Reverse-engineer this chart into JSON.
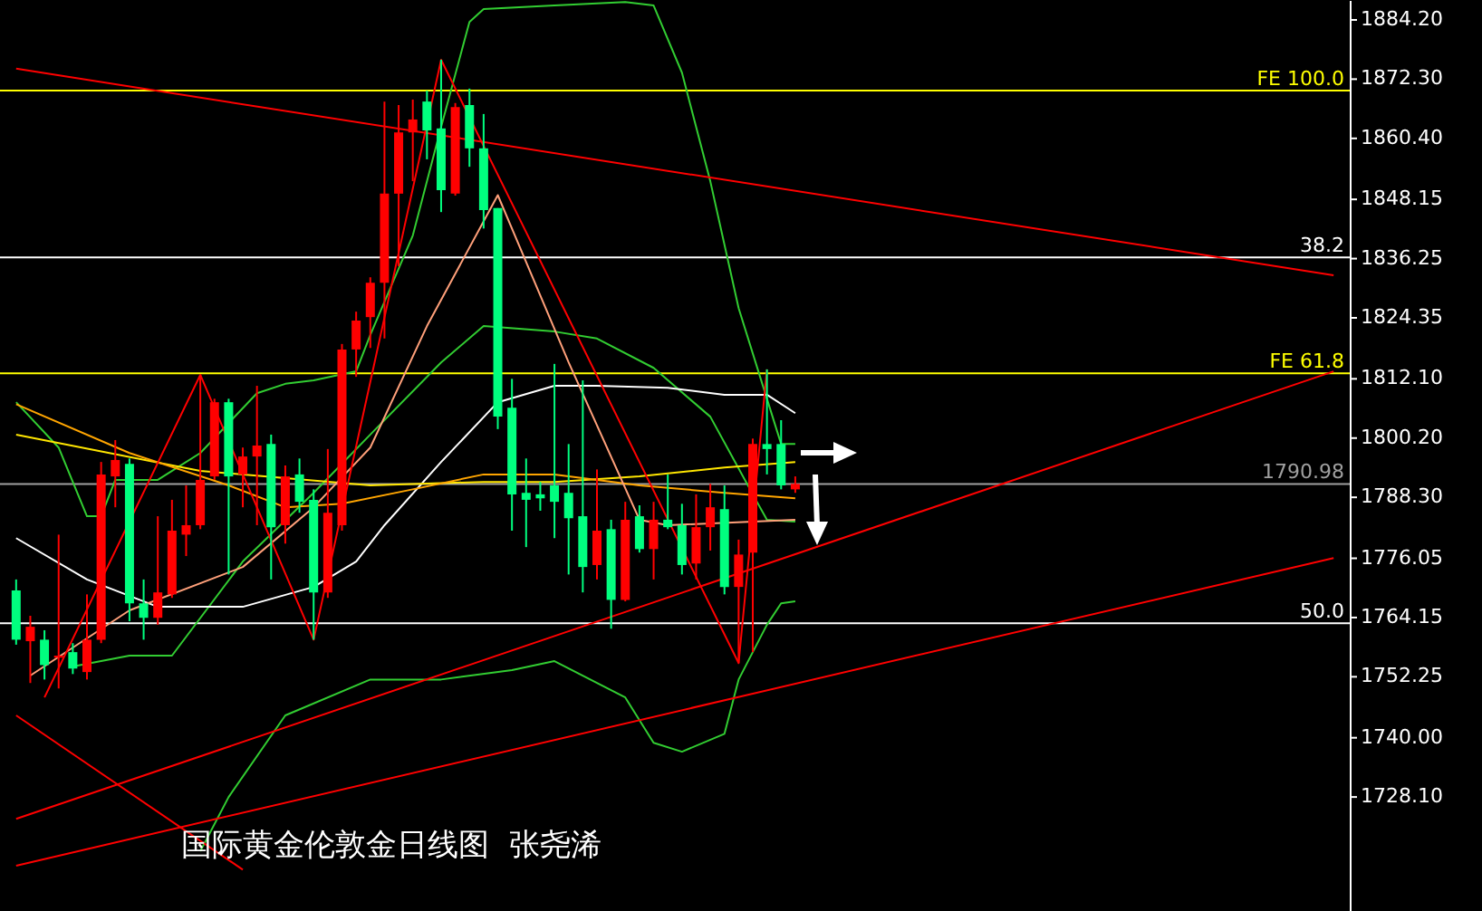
{
  "chart_data": {
    "type": "candlestick",
    "title": "国际黄金伦敦金日线图  张尧浠",
    "categories": [
      null,
      null,
      null,
      null,
      null,
      null,
      null,
      null,
      null,
      null,
      null,
      null,
      null,
      null,
      null,
      null,
      null,
      null,
      null,
      null,
      null,
      null,
      null,
      null,
      null,
      null,
      null,
      null,
      null,
      null,
      null,
      null,
      null,
      null,
      null,
      null,
      null,
      null,
      null,
      null,
      null,
      null,
      null,
      null,
      null,
      null,
      null,
      null,
      null,
      null,
      null,
      null,
      null,
      null,
      null,
      null,
      null,
      null,
      null,
      null,
      null,
      null,
      null,
      null,
      null,
      null,
      null,
      null,
      null,
      null,
      null,
      null,
      null,
      null,
      null,
      null,
      null,
      null,
      null,
      null,
      null,
      null,
      null,
      null,
      null,
      null,
      null,
      null,
      null,
      null,
      null,
      null,
      null,
      null
    ],
    "ohlc": [
      [
        1769.6,
        1771.8,
        1758.7,
        1759.7
      ],
      [
        1759.4,
        1764.5,
        1751.0,
        1762.3
      ],
      [
        1759.7,
        1761.6,
        1751.7,
        1754.6
      ],
      [
        1756.1,
        1780.8,
        1749.9,
        1756.5
      ],
      [
        1757.2,
        1759.0,
        1752.8,
        1753.9
      ],
      [
        1753.2,
        1768.8,
        1751.7,
        1759.7
      ],
      [
        1759.7,
        1795.4,
        1759.0,
        1792.9
      ],
      [
        1792.5,
        1799.8,
        1786.3,
        1795.8
      ],
      [
        1795.0,
        1796.1,
        1763.4,
        1767.0
      ],
      [
        1767.0,
        1771.8,
        1759.7,
        1764.1
      ],
      [
        1764.1,
        1784.5,
        1762.7,
        1769.2
      ],
      [
        1768.8,
        1787.8,
        1768.1,
        1781.6
      ],
      [
        1780.8,
        1790.7,
        1776.5,
        1782.7
      ],
      [
        1782.7,
        1812.9,
        1781.9,
        1791.8
      ],
      [
        1792.5,
        1808.1,
        1791.8,
        1807.4
      ],
      [
        1807.4,
        1808.1,
        1772.8,
        1792.5
      ],
      [
        1792.9,
        1798.3,
        1786.3,
        1796.5
      ],
      [
        1796.5,
        1810.7,
        1782.7,
        1798.7
      ],
      [
        1799.0,
        1800.9,
        1771.8,
        1782.3
      ],
      [
        1782.7,
        1794.7,
        1779.0,
        1792.5
      ],
      [
        1792.9,
        1796.1,
        1785.2,
        1787.4
      ],
      [
        1787.8,
        1789.9,
        1759.7,
        1769.2
      ],
      [
        1769.2,
        1798.0,
        1768.1,
        1785.2
      ],
      [
        1782.7,
        1819.1,
        1781.6,
        1818.0
      ],
      [
        1818.0,
        1825.6,
        1812.5,
        1823.8
      ],
      [
        1824.5,
        1832.5,
        1818.3,
        1831.4
      ],
      [
        1831.4,
        1867.8,
        1820.2,
        1849.3
      ],
      [
        1849.3,
        1867.1,
        1834.7,
        1861.6
      ],
      [
        1861.6,
        1868.2,
        1851.8,
        1864.2
      ],
      [
        1867.8,
        1870.0,
        1856.2,
        1862.0
      ],
      [
        1862.4,
        1876.2,
        1845.6,
        1850.0
      ],
      [
        1849.3,
        1867.5,
        1848.9,
        1866.7
      ],
      [
        1867.1,
        1870.4,
        1854.7,
        1858.4
      ],
      [
        1858.4,
        1865.3,
        1842.3,
        1846.0
      ],
      [
        1846.4,
        1846.4,
        1802.0,
        1804.5
      ],
      [
        1806.3,
        1812.1,
        1781.6,
        1788.9
      ],
      [
        1789.2,
        1796.1,
        1778.3,
        1787.8
      ],
      [
        1788.9,
        1791.4,
        1785.6,
        1788.1
      ],
      [
        1790.7,
        1815.1,
        1780.1,
        1787.4
      ],
      [
        1789.2,
        1799.0,
        1772.8,
        1784.1
      ],
      [
        1784.5,
        1811.8,
        1769.2,
        1774.3
      ],
      [
        1774.7,
        1793.9,
        1771.8,
        1781.6
      ],
      [
        1781.9,
        1783.8,
        1761.9,
        1767.7
      ],
      [
        1767.7,
        1787.4,
        1767.4,
        1783.8
      ],
      [
        1784.5,
        1786.7,
        1777.2,
        1777.9
      ],
      [
        1777.9,
        1787.4,
        1771.8,
        1783.8
      ],
      [
        1783.8,
        1792.9,
        1781.9,
        1782.3
      ],
      [
        1782.7,
        1787.0,
        1772.8,
        1774.7
      ],
      [
        1775.0,
        1788.9,
        1771.8,
        1782.3
      ],
      [
        1782.3,
        1791.0,
        1777.6,
        1786.3
      ],
      [
        1785.9,
        1790.7,
        1768.8,
        1770.3
      ],
      [
        1770.3,
        1779.8,
        1755.0,
        1776.8
      ],
      [
        1777.2,
        1800.1,
        1757.2,
        1799.0
      ],
      [
        1799.0,
        1814.0,
        1792.9,
        1798.0
      ],
      [
        1799.0,
        1803.8,
        1789.9,
        1790.7
      ],
      [
        1789.9,
        1792.5,
        1789.2,
        1791.0
      ],
      null,
      null,
      null,
      null,
      null,
      null,
      null,
      null,
      null,
      null,
      null,
      null,
      null,
      null,
      null,
      null,
      null,
      null,
      null,
      null,
      null,
      null,
      null,
      null,
      null,
      null,
      null,
      null,
      null,
      null,
      null,
      null,
      null,
      null,
      null,
      null,
      null,
      null
    ],
    "colors": [
      "#00ff7f",
      "#ff0000",
      "#00ff7f",
      "#ff0000",
      "#00ff7f",
      "#ff0000",
      "#ff0000",
      "#ff0000",
      "#00ff7f",
      "#00ff7f",
      "#ff0000",
      "#ff0000",
      "#ff0000",
      "#ff0000",
      "#ff0000",
      "#00ff7f",
      "#ff0000",
      "#ff0000",
      "#00ff7f",
      "#ff0000",
      "#00ff7f",
      "#00ff7f",
      "#ff0000",
      "#ff0000",
      "#ff0000",
      "#ff0000",
      "#ff0000",
      "#ff0000",
      "#ff0000",
      "#00ff7f",
      "#00ff7f",
      "#ff0000",
      "#00ff7f",
      "#00ff7f",
      "#00ff7f",
      "#00ff7f",
      "#00ff7f",
      "#00ff7f",
      "#00ff7f",
      "#00ff7f",
      "#00ff7f",
      "#ff0000",
      "#00ff7f",
      "#ff0000",
      "#00ff7f",
      "#ff0000",
      "#00ff7f",
      "#00ff7f",
      "#ff0000",
      "#ff0000",
      "#00ff7f",
      "#ff0000",
      "#ff0000",
      "#00ff7f",
      "#00ff7f",
      "#ff0000",
      null,
      null,
      null,
      null,
      null,
      null,
      null,
      null,
      null,
      null,
      null,
      null,
      null,
      null,
      null,
      null,
      null,
      null,
      null,
      null,
      null,
      null,
      null,
      null,
      null,
      null,
      null,
      null,
      null,
      null,
      null,
      null,
      null,
      null,
      null,
      null,
      null,
      null
    ],
    "series": [
      {
        "type": "line",
        "color": "#32cd32",
        "values": [
          1807.4,
          null,
          null,
          1798.3,
          null,
          1784.5,
          1784.5,
          1791.8,
          null,
          null,
          1791.8,
          null,
          null,
          1797.2,
          null,
          null,
          null,
          1809.2,
          null,
          1811.1,
          null,
          1811.8,
          null,
          null,
          1813.6,
          1820.9,
          null,
          null,
          1840.9,
          null,
          1862.7,
          null,
          1883.8,
          1886.4,
          null,
          null,
          null,
          null,
          1887.1,
          null,
          null,
          null,
          null,
          1887.8,
          null,
          1887.1,
          null,
          1873.6,
          null,
          1851.8,
          null,
          1826.3,
          null,
          1808.1,
          1799.0,
          1799.0,
          null,
          null,
          null,
          null,
          null,
          null,
          null,
          null,
          null,
          null,
          null,
          null,
          null,
          null,
          null,
          null,
          null,
          null,
          null,
          null,
          null,
          null,
          null,
          null,
          null,
          null,
          null,
          null,
          null,
          null,
          null,
          null,
          null,
          null,
          null,
          null,
          null,
          null
        ]
      },
      {
        "type": "line",
        "color": "#32cd32",
        "values": [
          null,
          null,
          null,
          null,
          1754.3,
          null,
          null,
          null,
          1756.5,
          null,
          null,
          1756.5,
          null,
          null,
          null,
          null,
          1775.4,
          null,
          null,
          null,
          null,
          1789.2,
          null,
          null,
          null,
          1800.9,
          null,
          null,
          null,
          null,
          1815.4,
          null,
          null,
          1822.7,
          null,
          null,
          null,
          null,
          1821.6,
          null,
          null,
          1820.2,
          null,
          null,
          null,
          1814.3,
          null,
          null,
          null,
          1804.5,
          null,
          null,
          1788.9,
          1783.8,
          null,
          1783.4,
          null,
          null,
          null,
          null,
          null,
          null,
          null,
          null,
          null,
          null,
          null,
          null,
          null,
          null,
          null,
          null,
          null,
          null,
          null,
          null,
          null,
          null,
          null,
          null,
          null,
          null,
          null,
          null,
          null,
          null,
          null,
          null,
          null,
          null,
          null,
          null,
          null,
          null
        ]
      },
      {
        "type": "line",
        "color": "#32cd32",
        "values": [
          null,
          null,
          null,
          null,
          null,
          null,
          null,
          null,
          null,
          null,
          null,
          null,
          null,
          1717.2,
          null,
          1728.1,
          null,
          null,
          null,
          1744.5,
          null,
          null,
          null,
          null,
          null,
          1751.7,
          null,
          null,
          null,
          null,
          1751.7,
          null,
          null,
          null,
          null,
          1753.6,
          null,
          null,
          1755.4,
          null,
          null,
          null,
          null,
          1748.1,
          null,
          1739.0,
          null,
          1737.2,
          null,
          null,
          1740.8,
          1751.7,
          null,
          1762.7,
          1767.0,
          1767.4,
          null,
          null,
          null,
          null,
          null,
          null,
          null,
          null,
          null,
          null,
          null,
          null,
          null,
          null,
          null,
          null,
          null,
          null,
          null,
          null,
          null,
          null,
          null,
          null,
          null,
          null,
          null,
          null,
          null,
          null,
          null,
          null,
          null,
          null,
          null,
          null,
          null,
          null
        ]
      },
      {
        "type": "line",
        "color": "#ffffff",
        "values": [
          1780.1,
          null,
          null,
          null,
          null,
          1771.8,
          null,
          null,
          null,
          null,
          1766.3,
          null,
          null,
          null,
          null,
          null,
          1766.3,
          null,
          null,
          null,
          null,
          1770.3,
          null,
          null,
          1775.4,
          null,
          1782.7,
          null,
          null,
          null,
          1795.4,
          null,
          null,
          null,
          1807.4,
          null,
          null,
          null,
          1810.7,
          null,
          null,
          1810.7,
          null,
          null,
          null,
          null,
          1810.3,
          null,
          null,
          null,
          1808.9,
          null,
          null,
          1808.9,
          null,
          1805.2,
          null,
          null,
          null,
          null,
          null,
          null,
          null,
          null,
          null,
          null,
          null,
          null,
          null,
          null,
          null,
          null,
          null,
          null,
          null,
          null,
          null,
          null,
          null,
          null,
          null,
          null,
          null,
          null,
          null,
          null,
          null,
          null,
          null,
          null,
          null,
          null,
          null,
          null
        ]
      },
      {
        "type": "line",
        "color": "#ffe600",
        "values": [
          1800.9,
          null,
          null,
          null,
          null,
          null,
          null,
          null,
          null,
          null,
          null,
          null,
          null,
          1793.6,
          null,
          null,
          null,
          null,
          null,
          null,
          null,
          null,
          null,
          null,
          null,
          1790.7,
          null,
          null,
          null,
          null,
          null,
          null,
          null,
          1791.4,
          null,
          null,
          null,
          null,
          1791.4,
          null,
          null,
          null,
          null,
          null,
          1792.5,
          null,
          null,
          null,
          null,
          null,
          1794.3,
          null,
          null,
          null,
          null,
          1795.4,
          null,
          null,
          null,
          null,
          null,
          null,
          null,
          null,
          null,
          null,
          null,
          null,
          null,
          null,
          null,
          null,
          null,
          null,
          null,
          null,
          null,
          null,
          null,
          null,
          null,
          null,
          null,
          null,
          null,
          null,
          null,
          null,
          null,
          null,
          null,
          null,
          null,
          null
        ]
      },
      {
        "type": "line",
        "color": "#ffa500",
        "values": [
          1807.0,
          null,
          null,
          null,
          null,
          null,
          null,
          null,
          1797.2,
          null,
          null,
          null,
          null,
          null,
          null,
          1790.7,
          null,
          null,
          null,
          1786.3,
          null,
          null,
          null,
          1787.0,
          null,
          null,
          null,
          null,
          1789.9,
          null,
          null,
          null,
          null,
          1792.9,
          null,
          null,
          null,
          null,
          1792.9,
          null,
          null,
          null,
          null,
          null,
          1790.7,
          null,
          null,
          null,
          null,
          null,
          1789.2,
          null,
          null,
          null,
          null,
          1788.1,
          null,
          null,
          null,
          null,
          null,
          null,
          null,
          null,
          null,
          null,
          null,
          null,
          null,
          null,
          null,
          null,
          null,
          null,
          null,
          null,
          null,
          null,
          null,
          null,
          null,
          null,
          null,
          null,
          null,
          null,
          null,
          null,
          null,
          null,
          null,
          null,
          null,
          null
        ]
      },
      {
        "type": "line",
        "color": "#ffa07a",
        "values": [
          null,
          1752.5,
          null,
          null,
          null,
          null,
          null,
          null,
          1765.6,
          null,
          null,
          null,
          null,
          null,
          null,
          null,
          1774.3,
          null,
          null,
          null,
          null,
          1786.3,
          null,
          null,
          null,
          1798.3,
          null,
          null,
          null,
          1822.7,
          null,
          null,
          null,
          null,
          1849.0,
          null,
          null,
          null,
          null,
          1815.4,
          null,
          null,
          null,
          null,
          1783.8,
          null,
          1782.7,
          null,
          null,
          null,
          null,
          null,
          null,
          null,
          null,
          1783.8,
          null,
          null,
          null,
          null,
          null,
          null,
          null,
          null,
          null,
          null,
          null,
          null,
          null,
          null,
          null,
          null,
          null,
          null,
          null,
          null,
          null,
          null,
          null,
          null,
          null,
          null,
          null,
          null,
          null,
          null,
          null,
          null,
          null,
          null,
          null,
          null,
          null,
          null
        ]
      },
      {
        "type": "line",
        "color": "#ff0000",
        "values": [
          null,
          null,
          1748.1,
          null,
          null,
          null,
          null,
          null,
          null,
          null,
          null,
          null,
          null,
          1812.9,
          null,
          null,
          null,
          null,
          null,
          null,
          null,
          1759.7,
          null,
          null,
          null,
          null,
          null,
          null,
          null,
          null,
          1876.2,
          null,
          null,
          null,
          null,
          null,
          null,
          null,
          null,
          null,
          null,
          null,
          null,
          null,
          null,
          null,
          null,
          null,
          null,
          null,
          null,
          1755.0,
          null,
          1814.0,
          null,
          null,
          null,
          null,
          null,
          null,
          null,
          null,
          null,
          null,
          null,
          null,
          null,
          null,
          null,
          null,
          null,
          null,
          null,
          null,
          null,
          null,
          null,
          null,
          null,
          null,
          null,
          null,
          null,
          null,
          null,
          null,
          null,
          null,
          null,
          null,
          null,
          null,
          null,
          null
        ]
      },
      {
        "type": "line",
        "color": "#ff0000",
        "values": [
          1874.4,
          null,
          null,
          null,
          null,
          null,
          null,
          null,
          null,
          null,
          null,
          null,
          null,
          null,
          null,
          null,
          null,
          null,
          null,
          null,
          null,
          null,
          null,
          null,
          null,
          null,
          null,
          null,
          null,
          null,
          null,
          null,
          null,
          null,
          null,
          null,
          null,
          null,
          null,
          null,
          null,
          null,
          null,
          null,
          null,
          null,
          null,
          null,
          null,
          null,
          null,
          null,
          null,
          null,
          null,
          null,
          null,
          null,
          null,
          null,
          null,
          null,
          null,
          null,
          null,
          null,
          null,
          null,
          null,
          null,
          null,
          null,
          null,
          null,
          null,
          null,
          null,
          null,
          null,
          null,
          null,
          null,
          null,
          null,
          null,
          null,
          null,
          null,
          null,
          null,
          null,
          null,
          null,
          1832.9
        ]
      },
      {
        "type": "line",
        "color": "#ff0000",
        "values": [
          1723.7,
          null,
          null,
          null,
          null,
          null,
          null,
          null,
          null,
          null,
          null,
          null,
          null,
          null,
          null,
          null,
          null,
          null,
          null,
          null,
          null,
          null,
          null,
          null,
          null,
          null,
          null,
          null,
          null,
          null,
          null,
          null,
          null,
          null,
          null,
          null,
          null,
          null,
          null,
          null,
          null,
          null,
          null,
          null,
          null,
          null,
          null,
          null,
          null,
          null,
          null,
          null,
          null,
          null,
          null,
          null,
          null,
          null,
          null,
          null,
          null,
          null,
          null,
          null,
          null,
          null,
          null,
          null,
          null,
          null,
          null,
          null,
          null,
          null,
          null,
          null,
          null,
          null,
          null,
          null,
          null,
          null,
          null,
          null,
          null,
          null,
          null,
          null,
          null,
          null,
          null,
          null,
          null,
          1813.6
        ]
      },
      {
        "type": "line",
        "color": "#ff0000",
        "values": [
          1714.3,
          null,
          null,
          null,
          null,
          null,
          null,
          null,
          null,
          null,
          null,
          null,
          null,
          null,
          null,
          null,
          null,
          null,
          null,
          null,
          null,
          null,
          null,
          null,
          null,
          null,
          null,
          null,
          null,
          null,
          null,
          null,
          null,
          null,
          null,
          null,
          null,
          null,
          null,
          null,
          null,
          null,
          null,
          null,
          null,
          null,
          null,
          null,
          null,
          null,
          null,
          null,
          null,
          null,
          null,
          null,
          null,
          null,
          null,
          null,
          null,
          null,
          null,
          null,
          null,
          null,
          null,
          null,
          null,
          null,
          null,
          null,
          null,
          null,
          null,
          null,
          null,
          null,
          null,
          null,
          null,
          null,
          null,
          null,
          null,
          null,
          null,
          null,
          null,
          null,
          null,
          null,
          null,
          1776.1
        ]
      },
      {
        "type": "line",
        "color": "#ff0000",
        "values": [
          1744.5,
          null,
          null,
          null,
          null,
          null,
          null,
          null,
          null,
          null,
          null,
          null,
          null,
          null,
          null,
          null,
          1713.5,
          null,
          null,
          null,
          null,
          null,
          null,
          null,
          null,
          null,
          null,
          null,
          null,
          null,
          null,
          null,
          null,
          null,
          null,
          null,
          null,
          null,
          null,
          null,
          null,
          null,
          null,
          null,
          null,
          null,
          null,
          null,
          null,
          null,
          null,
          null,
          null,
          null,
          null,
          null,
          null,
          null,
          null,
          null,
          null,
          null,
          null,
          null,
          null,
          null,
          null,
          null,
          null,
          null,
          null,
          null,
          null,
          null,
          null,
          null,
          null,
          null,
          null,
          null,
          null,
          null,
          null,
          null,
          null,
          null,
          null,
          null,
          null,
          null,
          null,
          null,
          null,
          null
        ]
      }
    ],
    "ref_lines": [
      {
        "axis": "y",
        "value": 1870.0,
        "label": "FE 100.0",
        "color": "#ffff00"
      },
      {
        "axis": "y",
        "value": 1836.5,
        "color": "#ffffff"
      },
      {
        "axis": "y",
        "value": 1813.2,
        "label": "FE 61.8",
        "color": "#ffff00"
      },
      {
        "axis": "y",
        "value": 1763.0,
        "color": "#ffffff"
      },
      {
        "axis": "y",
        "value": 1790.98,
        "label": "1790.98",
        "color": "#a0a0a0"
      }
    ],
    "annotations": [
      {
        "text": "38.2",
        "y": 1836.5
      },
      {
        "text": "50.0",
        "y": 1763.0
      }
    ],
    "ylim": [
      1705.2,
      1888.2
    ],
    "yticks": [
      {
        "value": 1884.2,
        "label": "1884.20"
      },
      {
        "value": 1872.3,
        "label": "1872.30"
      },
      {
        "value": 1860.4,
        "label": "1860.40"
      },
      {
        "value": 1848.15,
        "label": "1848.15"
      },
      {
        "value": 1836.25,
        "label": "1836.25"
      },
      {
        "value": 1824.35,
        "label": "1824.35"
      },
      {
        "value": 1812.1,
        "label": "1812.10"
      },
      {
        "value": 1800.2,
        "label": "1800.20"
      },
      {
        "value": 1788.3,
        "label": "1788.30"
      },
      {
        "value": 1776.05,
        "label": "1776.05"
      },
      {
        "value": 1764.15,
        "label": "1764.15"
      },
      {
        "value": 1752.25,
        "label": "1752.25"
      },
      {
        "value": 1740.0,
        "label": "1740.00"
      },
      {
        "value": 1728.1,
        "label": "1728.10"
      }
    ],
    "tick_labels": "y"
  }
}
